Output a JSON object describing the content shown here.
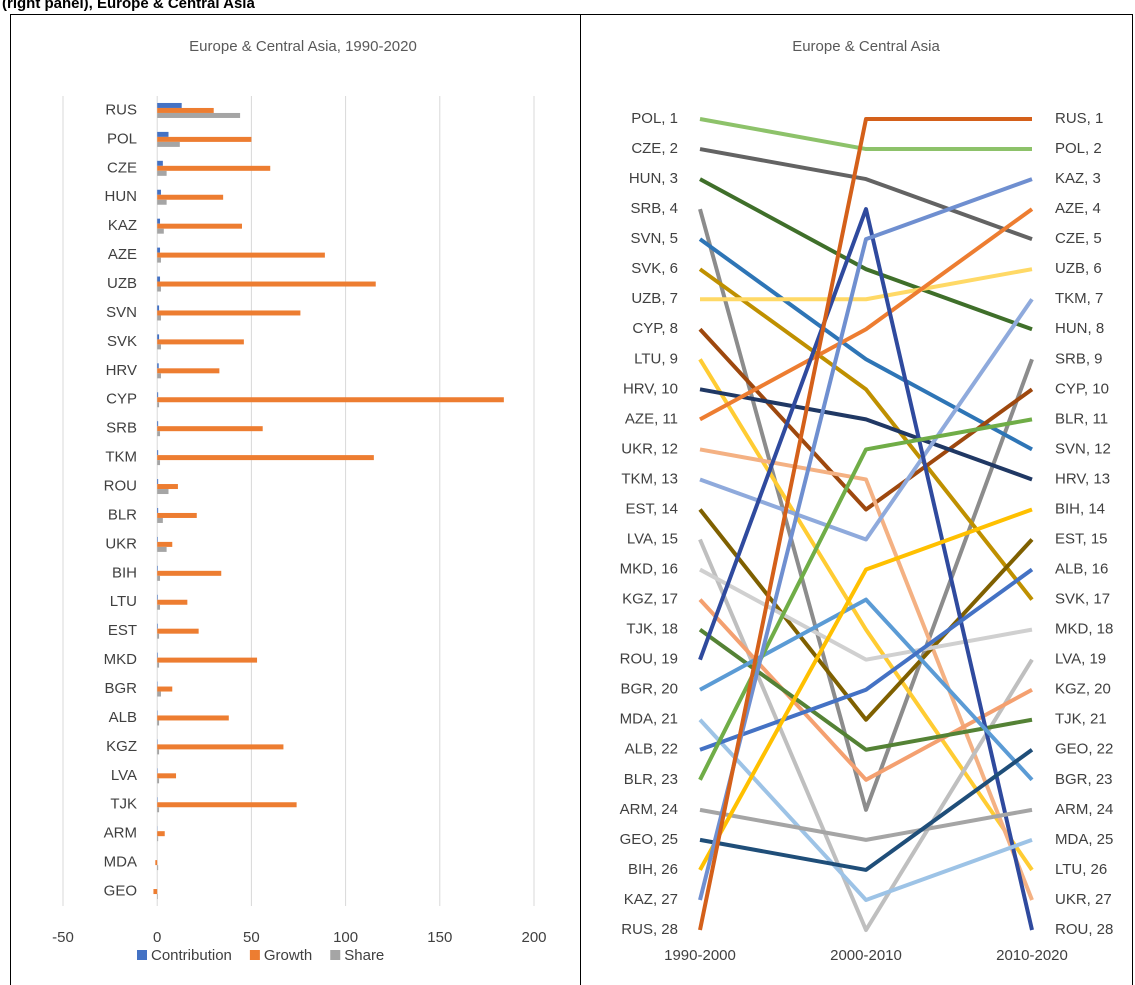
{
  "header": "(right panel), Europe & Central Asia",
  "chart_data": [
    {
      "type": "hbar",
      "title": "Europe & Central Asia, 1990-2020",
      "categories": [
        "RUS",
        "POL",
        "CZE",
        "HUN",
        "KAZ",
        "AZE",
        "UZB",
        "SVN",
        "SVK",
        "HRV",
        "CYP",
        "SRB",
        "TKM",
        "ROU",
        "BLR",
        "UKR",
        "BIH",
        "LTU",
        "EST",
        "MKD",
        "BGR",
        "ALB",
        "KGZ",
        "LVA",
        "TJK",
        "ARM",
        "MDA",
        "GEO"
      ],
      "series": [
        {
          "name": "Contribution",
          "color": "#4472c4",
          "values": [
            13,
            6,
            3,
            2,
            1.5,
            1.5,
            1.5,
            1,
            1,
            0.8,
            0.5,
            0.5,
            0.5,
            0.5,
            0.5,
            0.3,
            0.3,
            0.3,
            0.3,
            0.3,
            0.2,
            0.2,
            0.2,
            0.2,
            0.2,
            0.1,
            0,
            0
          ]
        },
        {
          "name": "Growth",
          "color": "#ed7d31",
          "values": [
            30,
            50,
            60,
            35,
            45,
            89,
            116,
            76,
            46,
            33,
            184,
            56,
            115,
            11,
            21,
            8,
            34,
            16,
            22,
            53,
            8,
            38,
            67,
            10,
            74,
            4,
            -1,
            -2
          ]
        },
        {
          "name": "Share",
          "color": "#a5a5a5",
          "values": [
            44,
            12,
            5,
            5,
            3.5,
            2,
            2,
            2,
            2,
            2,
            1,
            1.5,
            1.5,
            6,
            3,
            5,
            1.5,
            1.5,
            1,
            1,
            2,
            1,
            1,
            1,
            1,
            0.5,
            0.5,
            0.3
          ]
        }
      ],
      "xlim": [
        -50,
        200
      ],
      "xticks": [
        -50,
        0,
        50,
        100,
        150,
        200
      ],
      "grid": true,
      "legend": "bottom"
    },
    {
      "type": "bump",
      "title": "Europe & Central Asia",
      "x": [
        "1990-2000",
        "2000-2010",
        "2010-2020"
      ],
      "ylim": [
        1,
        28
      ],
      "y_inverted": true,
      "left_labels": [
        "POL, 1",
        "CZE, 2",
        "HUN, 3",
        "SRB, 4",
        "SVN, 5",
        "SVK, 6",
        "UZB, 7",
        "CYP, 8",
        "LTU, 9",
        "HRV, 10",
        "AZE, 11",
        "UKR, 12",
        "TKM, 13",
        "EST, 14",
        "LVA, 15",
        "MKD, 16",
        "KGZ, 17",
        "TJK, 18",
        "ROU, 19",
        "BGR, 20",
        "MDA, 21",
        "ALB, 22",
        "BLR, 23",
        "ARM, 24",
        "GEO, 25",
        "BIH, 26",
        "KAZ, 27",
        "RUS, 28"
      ],
      "right_labels": [
        "RUS, 1",
        "POL, 2",
        "KAZ, 3",
        "AZE, 4",
        "CZE, 5",
        "UZB, 6",
        "TKM, 7",
        "HUN, 8",
        "SRB, 9",
        "CYP, 10",
        "BLR, 11",
        "SVN, 12",
        "HRV, 13",
        "BIH, 14",
        "EST, 15",
        "ALB, 16",
        "SVK, 17",
        "MKD, 18",
        "LVA, 19",
        "KGZ, 20",
        "TJK, 21",
        "GEO, 22",
        "BGR, 23",
        "ARM, 24",
        "MDA, 25",
        "LTU, 26",
        "UKR, 27",
        "ROU, 28"
      ],
      "series": [
        {
          "name": "POL",
          "color": "#8dc26a",
          "values": [
            1,
            2,
            2
          ]
        },
        {
          "name": "CZE",
          "color": "#636363",
          "values": [
            2,
            3,
            5
          ]
        },
        {
          "name": "HUN",
          "color": "#3f6f2a",
          "values": [
            3,
            6,
            8
          ]
        },
        {
          "name": "SRB",
          "color": "#8c8c8c",
          "values": [
            4,
            24,
            9
          ]
        },
        {
          "name": "SVN",
          "color": "#2e75b6",
          "values": [
            5,
            9,
            12
          ]
        },
        {
          "name": "SVK",
          "color": "#bf9000",
          "values": [
            6,
            10,
            17
          ]
        },
        {
          "name": "UZB",
          "color": "#ffd966",
          "values": [
            7,
            7,
            6
          ]
        },
        {
          "name": "CYP",
          "color": "#9e480e",
          "values": [
            8,
            14,
            10
          ]
        },
        {
          "name": "LTU",
          "color": "#ffcc33",
          "values": [
            9,
            18,
            26
          ]
        },
        {
          "name": "HRV",
          "color": "#203864",
          "values": [
            10,
            11,
            13
          ]
        },
        {
          "name": "AZE",
          "color": "#ed7d31",
          "values": [
            11,
            8,
            4
          ]
        },
        {
          "name": "UKR",
          "color": "#f4b183",
          "values": [
            12,
            13,
            27
          ]
        },
        {
          "name": "TKM",
          "color": "#8faadc",
          "values": [
            13,
            15,
            7
          ]
        },
        {
          "name": "EST",
          "color": "#7f6000",
          "values": [
            14,
            21,
            15
          ]
        },
        {
          "name": "LVA",
          "color": "#bfbfbf",
          "values": [
            15,
            28,
            19
          ]
        },
        {
          "name": "MKD",
          "color": "#d0d0d0",
          "values": [
            16,
            19,
            18
          ]
        },
        {
          "name": "KGZ",
          "color": "#f4a070",
          "values": [
            17,
            23,
            20
          ]
        },
        {
          "name": "TJK",
          "color": "#548235",
          "values": [
            18,
            22,
            21
          ]
        },
        {
          "name": "ROU",
          "color": "#2f4a9e",
          "values": [
            19,
            4,
            28
          ]
        },
        {
          "name": "BGR",
          "color": "#5b9bd5",
          "values": [
            20,
            17,
            23
          ]
        },
        {
          "name": "MDA",
          "color": "#9dc3e6",
          "values": [
            21,
            27,
            25
          ]
        },
        {
          "name": "ALB",
          "color": "#4472c4",
          "values": [
            22,
            20,
            16
          ]
        },
        {
          "name": "BLR",
          "color": "#70ad47",
          "values": [
            23,
            12,
            11
          ]
        },
        {
          "name": "ARM",
          "color": "#a5a5a5",
          "values": [
            24,
            25,
            24
          ]
        },
        {
          "name": "GEO",
          "color": "#1f4e79",
          "values": [
            25,
            26,
            22
          ]
        },
        {
          "name": "BIH",
          "color": "#ffc000",
          "values": [
            26,
            16,
            14
          ]
        },
        {
          "name": "KAZ",
          "color": "#6f8fd0",
          "values": [
            27,
            5,
            3
          ]
        },
        {
          "name": "RUS",
          "color": "#d4601a",
          "values": [
            28,
            1,
            1
          ]
        }
      ]
    }
  ]
}
